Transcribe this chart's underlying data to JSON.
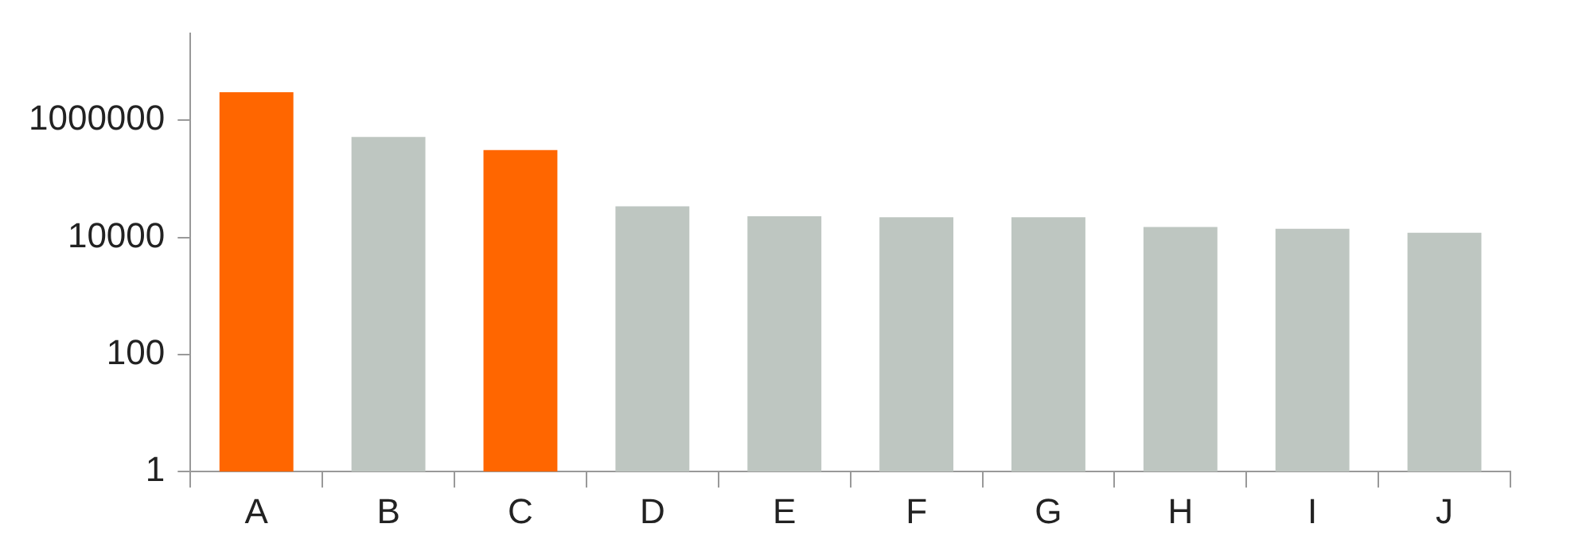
{
  "chart_data": {
    "type": "bar",
    "categories": [
      "A",
      "B",
      "C",
      "D",
      "E",
      "F",
      "G",
      "H",
      "I",
      "J"
    ],
    "values": [
      3000000,
      520000,
      310000,
      34000,
      23000,
      22000,
      22000,
      15000,
      14000,
      12000
    ],
    "colors": [
      "#ff6600",
      "#bec6c1",
      "#ff6600",
      "#bec6c1",
      "#bec6c1",
      "#bec6c1",
      "#bec6c1",
      "#bec6c1",
      "#bec6c1",
      "#bec6c1"
    ],
    "log": true,
    "ylim": [
      1,
      30000000
    ],
    "yticks": [
      1,
      100,
      10000,
      1000000
    ],
    "grid": false,
    "legend": false
  }
}
